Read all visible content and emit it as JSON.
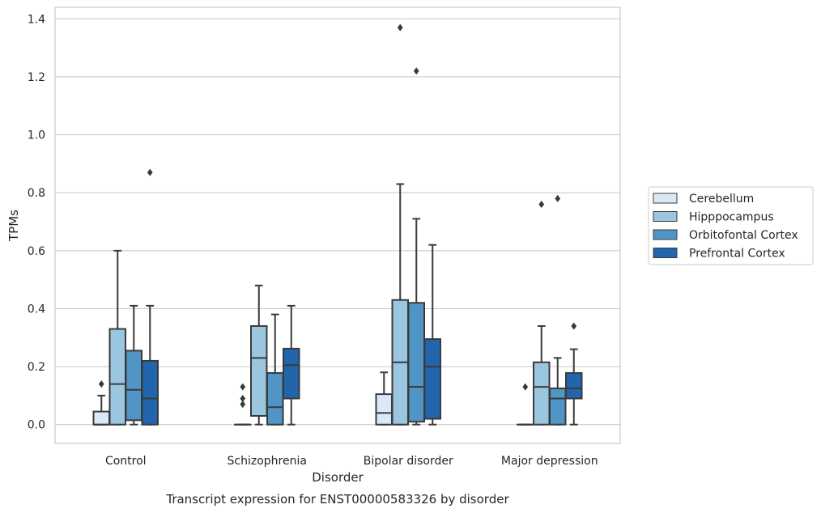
{
  "chart_data": {
    "type": "boxplot",
    "title": "Transcript expression for ENST00000583326 by disorder",
    "xlabel": "Disorder",
    "ylabel": "TPMs",
    "ylim": [
      -0.065,
      1.44
    ],
    "yticks": [
      0.0,
      0.2,
      0.4,
      0.6,
      0.8,
      1.0,
      1.2,
      1.4
    ],
    "ytick_labels": [
      "0.0",
      "0.2",
      "0.4",
      "0.6",
      "0.8",
      "1.0",
      "1.2",
      "1.4"
    ],
    "grid": "horizontal",
    "legend_position": "right",
    "categories": [
      "Control",
      "Schizophrenia",
      "Bipolar disorder",
      "Major depression"
    ],
    "series": [
      {
        "name": "Cerebellum",
        "color": "#dbe8f5",
        "boxes": [
          {
            "whisker_low": 0.0,
            "q1": 0.0,
            "median": 0.0,
            "q3": 0.045,
            "whisker_high": 0.1,
            "outliers": [
              0.14
            ]
          },
          {
            "whisker_low": 0.0,
            "q1": 0.0,
            "median": 0.0,
            "q3": 0.0,
            "whisker_high": 0.0,
            "outliers": [
              0.07,
              0.09,
              0.13
            ]
          },
          {
            "whisker_low": 0.0,
            "q1": 0.0,
            "median": 0.04,
            "q3": 0.105,
            "whisker_high": 0.18,
            "outliers": []
          },
          {
            "whisker_low": 0.0,
            "q1": 0.0,
            "median": 0.0,
            "q3": 0.0,
            "whisker_high": 0.0,
            "outliers": [
              0.13
            ]
          }
        ]
      },
      {
        "name": "Hipppocampus",
        "color": "#9ac6e0",
        "boxes": [
          {
            "whisker_low": 0.0,
            "q1": 0.0,
            "median": 0.14,
            "q3": 0.33,
            "whisker_high": 0.6,
            "outliers": []
          },
          {
            "whisker_low": 0.0,
            "q1": 0.03,
            "median": 0.23,
            "q3": 0.34,
            "whisker_high": 0.48,
            "outliers": []
          },
          {
            "whisker_low": 0.0,
            "q1": 0.0,
            "median": 0.215,
            "q3": 0.43,
            "whisker_high": 0.83,
            "outliers": [
              1.37
            ]
          },
          {
            "whisker_low": 0.0,
            "q1": 0.0,
            "median": 0.13,
            "q3": 0.215,
            "whisker_high": 0.34,
            "outliers": [
              0.76
            ]
          }
        ]
      },
      {
        "name": "Orbitofontal Cortex",
        "color": "#5195c6",
        "boxes": [
          {
            "whisker_low": 0.0,
            "q1": 0.015,
            "median": 0.12,
            "q3": 0.255,
            "whisker_high": 0.41,
            "outliers": []
          },
          {
            "whisker_low": 0.0,
            "q1": 0.0,
            "median": 0.06,
            "q3": 0.178,
            "whisker_high": 0.38,
            "outliers": []
          },
          {
            "whisker_low": 0.0,
            "q1": 0.01,
            "median": 0.13,
            "q3": 0.42,
            "whisker_high": 0.71,
            "outliers": [
              1.22
            ]
          },
          {
            "whisker_low": 0.0,
            "q1": 0.0,
            "median": 0.09,
            "q3": 0.125,
            "whisker_high": 0.23,
            "outliers": [
              0.78
            ]
          }
        ]
      },
      {
        "name": "Prefrontal Cortex",
        "color": "#2166ac",
        "boxes": [
          {
            "whisker_low": 0.0,
            "q1": 0.0,
            "median": 0.09,
            "q3": 0.22,
            "whisker_high": 0.41,
            "outliers": [
              0.87
            ]
          },
          {
            "whisker_low": 0.0,
            "q1": 0.09,
            "median": 0.205,
            "q3": 0.262,
            "whisker_high": 0.41,
            "outliers": []
          },
          {
            "whisker_low": 0.0,
            "q1": 0.02,
            "median": 0.2,
            "q3": 0.295,
            "whisker_high": 0.62,
            "outliers": []
          },
          {
            "whisker_low": 0.0,
            "q1": 0.09,
            "median": 0.125,
            "q3": 0.178,
            "whisker_high": 0.26,
            "outliers": [
              0.34
            ]
          }
        ]
      }
    ]
  }
}
